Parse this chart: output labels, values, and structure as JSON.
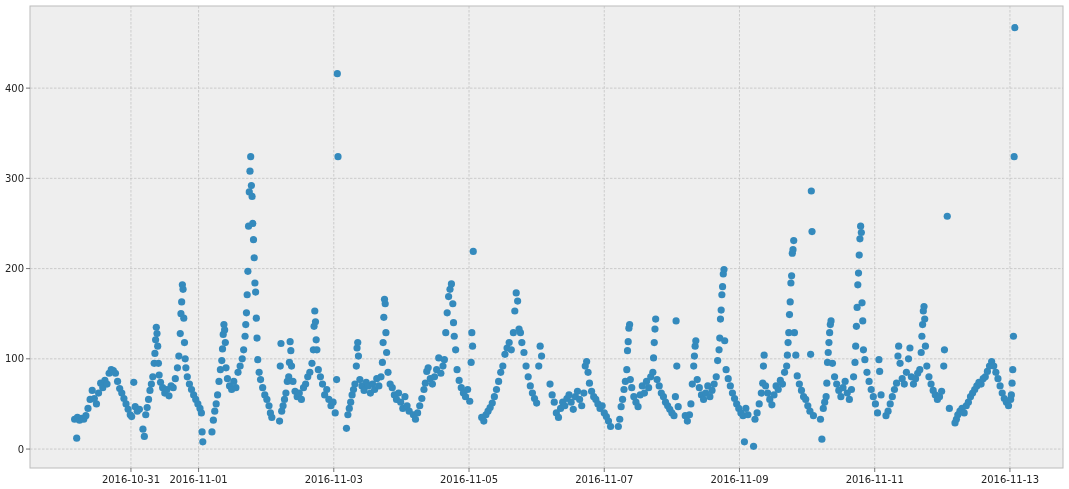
{
  "chart_data": {
    "type": "scatter",
    "color": "#348abd",
    "marker": "circle",
    "grid": true,
    "xlim": [
      "2016-10-29T12:10",
      "2016-11-13T18:50"
    ],
    "xticks": [
      "2016-10-31",
      "2016-11-01",
      "2016-11-03",
      "2016-11-05",
      "2016-11-07",
      "2016-11-09",
      "2016-11-11",
      "2016-11-13"
    ],
    "ylim": [
      -21,
      491
    ],
    "yticks": [
      0,
      100,
      200,
      300,
      400
    ],
    "x": [
      "2016-10-30T04:00",
      "2016-10-30T04:45",
      "2016-10-30T05:00",
      "2016-10-30T05:45",
      "2016-10-30T06:30",
      "2016-10-30T07:15",
      "2016-10-30T08:00",
      "2016-10-30T08:45",
      "2016-10-30T09:30",
      "2016-10-30T10:15",
      "2016-10-30T11:00",
      "2016-10-30T11:45",
      "2016-10-30T12:30",
      "2016-10-30T13:15",
      "2016-10-30T14:00",
      "2016-10-30T14:45",
      "2016-10-30T15:30",
      "2016-10-30T16:15",
      "2016-10-30T17:00",
      "2016-10-30T17:45",
      "2016-10-30T18:30",
      "2016-10-30T19:15",
      "2016-10-30T20:00",
      "2016-10-30T20:45",
      "2016-10-30T21:30",
      "2016-10-30T22:15",
      "2016-10-30T23:00",
      "2016-10-30T23:45",
      "2016-10-31T00:15",
      "2016-10-31T01:00",
      "2016-10-31T01:30",
      "2016-10-31T02:15",
      "2016-10-31T03:00",
      "2016-10-31T04:15",
      "2016-10-31T04:45",
      "2016-10-31T05:15",
      "2016-10-31T05:45",
      "2016-10-31T06:15",
      "2016-10-31T06:45",
      "2016-10-31T07:15",
      "2016-10-31T07:45",
      "2016-10-31T08:15",
      "2016-10-31T08:30",
      "2016-10-31T08:45",
      "2016-10-31T09:00",
      "2016-10-31T09:15",
      "2016-10-31T09:30",
      "2016-10-31T09:45",
      "2016-10-31T10:00",
      "2016-10-31T10:30",
      "2016-10-31T11:15",
      "2016-10-31T12:00",
      "2016-10-31T12:45",
      "2016-10-31T13:30",
      "2016-10-31T14:15",
      "2016-10-31T15:00",
      "2016-10-31T15:45",
      "2016-10-31T16:30",
      "2016-10-31T17:00",
      "2016-10-31T17:30",
      "2016-10-31T17:45",
      "2016-10-31T18:00",
      "2016-10-31T18:15",
      "2016-10-31T18:30",
      "2016-10-31T18:45",
      "2016-10-31T19:00",
      "2016-10-31T19:15",
      "2016-10-31T19:30",
      "2016-10-31T20:00",
      "2016-10-31T20:45",
      "2016-10-31T21:30",
      "2016-10-31T22:15",
      "2016-10-31T23:00",
      "2016-10-31T23:45",
      "2016-11-01T00:30",
      "2016-11-01T01:00",
      "2016-11-01T01:15",
      "2016-11-01T01:30",
      "2016-11-01T04:45",
      "2016-11-01T05:15",
      "2016-11-01T05:45",
      "2016-11-01T06:15",
      "2016-11-01T06:45",
      "2016-11-01T07:15",
      "2016-11-01T07:45",
      "2016-11-01T08:15",
      "2016-11-01T08:30",
      "2016-11-01T08:45",
      "2016-11-01T09:00",
      "2016-11-01T09:15",
      "2016-11-01T09:30",
      "2016-11-01T09:45",
      "2016-11-01T10:15",
      "2016-11-01T11:00",
      "2016-11-01T11:45",
      "2016-11-01T12:30",
      "2016-11-01T13:15",
      "2016-11-01T14:00",
      "2016-11-01T14:45",
      "2016-11-01T15:30",
      "2016-11-01T16:00",
      "2016-11-01T16:30",
      "2016-11-01T16:45",
      "2016-11-01T17:00",
      "2016-11-01T17:15",
      "2016-11-01T17:30",
      "2016-11-01T17:45",
      "2016-11-01T18:00",
      "2016-11-01T18:15",
      "2016-11-01T18:30",
      "2016-11-01T18:45",
      "2016-11-01T19:00",
      "2016-11-01T19:15",
      "2016-11-01T19:30",
      "2016-11-01T19:45",
      "2016-11-01T20:00",
      "2016-11-01T20:15",
      "2016-11-01T20:30",
      "2016-11-01T20:45",
      "2016-11-01T21:00",
      "2016-11-01T21:30",
      "2016-11-01T22:00",
      "2016-11-01T22:45",
      "2016-11-01T23:30",
      "2016-11-02T00:15",
      "2016-11-02T01:00",
      "2016-11-02T01:30",
      "2016-11-02T02:00",
      "2016-11-02T04:45",
      "2016-11-02T05:00",
      "2016-11-02T05:15",
      "2016-11-02T05:30",
      "2016-11-02T06:00",
      "2016-11-02T06:30",
      "2016-11-02T07:00",
      "2016-11-02T07:30",
      "2016-11-02T08:00",
      "2016-11-02T08:15",
      "2016-11-02T08:30",
      "2016-11-02T08:45",
      "2016-11-02T09:00",
      "2016-11-02T09:30",
      "2016-11-02T10:15",
      "2016-11-02T11:00",
      "2016-11-02T11:45",
      "2016-11-02T12:30",
      "2016-11-02T13:15",
      "2016-11-02T14:00",
      "2016-11-02T14:45",
      "2016-11-02T15:30",
      "2016-11-02T16:15",
      "2016-11-02T16:45",
      "2016-11-02T17:00",
      "2016-11-02T17:15",
      "2016-11-02T17:30",
      "2016-11-02T17:45",
      "2016-11-02T18:00",
      "2016-11-02T18:30",
      "2016-11-02T19:15",
      "2016-11-02T20:00",
      "2016-11-02T20:45",
      "2016-11-02T21:30",
      "2016-11-02T22:15",
      "2016-11-02T23:00",
      "2016-11-02T23:45",
      "2016-11-03T00:30",
      "2016-11-03T01:00",
      "2016-11-03T01:15",
      "2016-11-03T01:30",
      "2016-11-03T04:30",
      "2016-11-03T05:00",
      "2016-11-03T05:30",
      "2016-11-03T06:00",
      "2016-11-03T06:30",
      "2016-11-03T07:00",
      "2016-11-03T07:30",
      "2016-11-03T08:00",
      "2016-11-03T08:15",
      "2016-11-03T08:30",
      "2016-11-03T08:45",
      "2016-11-03T09:15",
      "2016-11-03T10:00",
      "2016-11-03T10:45",
      "2016-11-03T11:30",
      "2016-11-03T12:15",
      "2016-11-03T13:00",
      "2016-11-03T13:45",
      "2016-11-03T14:30",
      "2016-11-03T15:15",
      "2016-11-03T16:00",
      "2016-11-03T16:45",
      "2016-11-03T17:15",
      "2016-11-03T17:30",
      "2016-11-03T17:45",
      "2016-11-03T18:00",
      "2016-11-03T18:15",
      "2016-11-03T18:30",
      "2016-11-03T18:45",
      "2016-11-03T19:15",
      "2016-11-03T20:00",
      "2016-11-03T20:45",
      "2016-11-03T21:30",
      "2016-11-03T22:15",
      "2016-11-03T23:00",
      "2016-11-03T23:45",
      "2016-11-04T00:30",
      "2016-11-04T01:15",
      "2016-11-04T02:00",
      "2016-11-04T02:45",
      "2016-11-04T04:15",
      "2016-11-04T05:00",
      "2016-11-04T05:45",
      "2016-11-04T06:30",
      "2016-11-04T07:15",
      "2016-11-04T08:00",
      "2016-11-04T08:30",
      "2016-11-04T09:00",
      "2016-11-04T09:30",
      "2016-11-04T10:15",
      "2016-11-04T11:00",
      "2016-11-04T11:45",
      "2016-11-04T12:30",
      "2016-11-04T13:15",
      "2016-11-04T14:00",
      "2016-11-04T14:45",
      "2016-11-04T15:15",
      "2016-11-04T15:45",
      "2016-11-04T16:15",
      "2016-11-04T16:45",
      "2016-11-04T17:15",
      "2016-11-04T17:45",
      "2016-11-04T18:15",
      "2016-11-04T18:30",
      "2016-11-04T18:45",
      "2016-11-04T19:15",
      "2016-11-04T19:45",
      "2016-11-04T20:30",
      "2016-11-04T21:15",
      "2016-11-04T22:00",
      "2016-11-04T22:45",
      "2016-11-04T23:30",
      "2016-11-05T00:15",
      "2016-11-05T00:45",
      "2016-11-05T01:00",
      "2016-11-05T01:15",
      "2016-11-05T01:30",
      "2016-11-05T04:30",
      "2016-11-05T05:15",
      "2016-11-05T06:00",
      "2016-11-05T06:45",
      "2016-11-05T07:30",
      "2016-11-05T08:15",
      "2016-11-05T09:00",
      "2016-11-05T09:45",
      "2016-11-05T10:30",
      "2016-11-05T11:15",
      "2016-11-05T12:00",
      "2016-11-05T12:45",
      "2016-11-05T13:30",
      "2016-11-05T14:15",
      "2016-11-05T15:00",
      "2016-11-05T15:45",
      "2016-11-05T16:15",
      "2016-11-05T16:45",
      "2016-11-05T17:15",
      "2016-11-05T17:45",
      "2016-11-05T18:15",
      "2016-11-05T18:45",
      "2016-11-05T19:30",
      "2016-11-05T20:15",
      "2016-11-05T21:00",
      "2016-11-05T21:45",
      "2016-11-05T22:30",
      "2016-11-05T23:15",
      "2016-11-06T00:00",
      "2016-11-06T00:45",
      "2016-11-06T01:15",
      "2016-11-06T01:45",
      "2016-11-06T04:45",
      "2016-11-06T05:30",
      "2016-11-06T06:15",
      "2016-11-06T07:00",
      "2016-11-06T07:45",
      "2016-11-06T08:30",
      "2016-11-06T09:15",
      "2016-11-06T10:00",
      "2016-11-06T10:45",
      "2016-11-06T11:30",
      "2016-11-06T12:15",
      "2016-11-06T13:00",
      "2016-11-06T13:45",
      "2016-11-06T14:30",
      "2016-11-06T15:15",
      "2016-11-06T16:00",
      "2016-11-06T16:45",
      "2016-11-06T17:15",
      "2016-11-06T17:45",
      "2016-11-06T18:15",
      "2016-11-06T18:45",
      "2016-11-06T19:30",
      "2016-11-06T20:15",
      "2016-11-06T21:00",
      "2016-11-06T21:45",
      "2016-11-06T22:30",
      "2016-11-06T23:15",
      "2016-11-07T00:00",
      "2016-11-07T00:45",
      "2016-11-07T01:30",
      "2016-11-07T02:15",
      "2016-11-07T05:00",
      "2016-11-07T05:30",
      "2016-11-07T06:00",
      "2016-11-07T06:30",
      "2016-11-07T07:00",
      "2016-11-07T07:30",
      "2016-11-07T08:00",
      "2016-11-07T08:15",
      "2016-11-07T08:30",
      "2016-11-07T08:45",
      "2016-11-07T09:00",
      "2016-11-07T09:15",
      "2016-11-07T09:45",
      "2016-11-07T10:30",
      "2016-11-07T11:15",
      "2016-11-07T12:00",
      "2016-11-07T12:45",
      "2016-11-07T13:30",
      "2016-11-07T14:15",
      "2016-11-07T15:00",
      "2016-11-07T15:45",
      "2016-11-07T16:30",
      "2016-11-07T17:15",
      "2016-11-07T17:30",
      "2016-11-07T17:45",
      "2016-11-07T18:00",
      "2016-11-07T18:15",
      "2016-11-07T18:45",
      "2016-11-07T19:30",
      "2016-11-07T20:15",
      "2016-11-07T21:00",
      "2016-11-07T21:45",
      "2016-11-07T22:30",
      "2016-11-07T23:15",
      "2016-11-08T00:00",
      "2016-11-08T00:45",
      "2016-11-08T01:15",
      "2016-11-08T01:30",
      "2016-11-08T01:45",
      "2016-11-08T02:15",
      "2016-11-08T04:45",
      "2016-11-08T05:30",
      "2016-11-08T06:15",
      "2016-11-08T06:45",
      "2016-11-08T07:15",
      "2016-11-08T07:45",
      "2016-11-08T08:00",
      "2016-11-08T08:15",
      "2016-11-08T08:30",
      "2016-11-08T09:00",
      "2016-11-08T09:45",
      "2016-11-08T10:30",
      "2016-11-08T11:15",
      "2016-11-08T12:00",
      "2016-11-08T12:45",
      "2016-11-08T13:30",
      "2016-11-08T14:15",
      "2016-11-08T15:00",
      "2016-11-08T15:45",
      "2016-11-08T16:15",
      "2016-11-08T16:45",
      "2016-11-08T17:00",
      "2016-11-08T17:15",
      "2016-11-08T17:30",
      "2016-11-08T17:45",
      "2016-11-08T18:00",
      "2016-11-08T18:15",
      "2016-11-08T18:30",
      "2016-11-08T18:45",
      "2016-11-08T19:15",
      "2016-11-08T20:00",
      "2016-11-08T20:45",
      "2016-11-08T21:30",
      "2016-11-08T22:15",
      "2016-11-08T23:00",
      "2016-11-08T23:45",
      "2016-11-09T00:30",
      "2016-11-09T01:15",
      "2016-11-09T01:45",
      "2016-11-09T02:15",
      "2016-11-09T03:00",
      "2016-11-09T05:00",
      "2016-11-09T05:30",
      "2016-11-09T06:15",
      "2016-11-09T07:00",
      "2016-11-09T07:45",
      "2016-11-09T08:15",
      "2016-11-09T08:30",
      "2016-11-09T08:45",
      "2016-11-09T09:15",
      "2016-11-09T10:00",
      "2016-11-09T10:45",
      "2016-11-09T11:30",
      "2016-11-09T12:15",
      "2016-11-09T13:00",
      "2016-11-09T13:45",
      "2016-11-09T14:30",
      "2016-11-09T15:15",
      "2016-11-09T16:00",
      "2016-11-09T16:45",
      "2016-11-09T17:00",
      "2016-11-09T17:15",
      "2016-11-09T17:30",
      "2016-11-09T17:45",
      "2016-11-09T18:00",
      "2016-11-09T18:15",
      "2016-11-09T18:30",
      "2016-11-09T18:45",
      "2016-11-09T19:00",
      "2016-11-09T19:15",
      "2016-11-09T19:30",
      "2016-11-09T20:00",
      "2016-11-09T20:30",
      "2016-11-09T21:15",
      "2016-11-09T22:00",
      "2016-11-09T22:45",
      "2016-11-09T23:30",
      "2016-11-10T00:15",
      "2016-11-10T01:00",
      "2016-11-10T01:15",
      "2016-11-10T01:30",
      "2016-11-10T01:45",
      "2016-11-10T02:15",
      "2016-11-10T04:45",
      "2016-11-10T05:15",
      "2016-11-10T05:45",
      "2016-11-10T06:15",
      "2016-11-10T06:45",
      "2016-11-10T07:00",
      "2016-11-10T07:15",
      "2016-11-10T07:30",
      "2016-11-10T07:45",
      "2016-11-10T08:00",
      "2016-11-10T08:15",
      "2016-11-10T08:30",
      "2016-11-10T09:00",
      "2016-11-10T09:45",
      "2016-11-10T10:30",
      "2016-11-10T11:15",
      "2016-11-10T12:00",
      "2016-11-10T12:45",
      "2016-11-10T13:30",
      "2016-11-10T14:15",
      "2016-11-10T15:00",
      "2016-11-10T15:45",
      "2016-11-10T16:30",
      "2016-11-10T17:00",
      "2016-11-10T17:15",
      "2016-11-10T17:30",
      "2016-11-10T17:45",
      "2016-11-10T18:00",
      "2016-11-10T18:15",
      "2016-11-10T18:30",
      "2016-11-10T18:45",
      "2016-11-10T19:00",
      "2016-11-10T19:15",
      "2016-11-10T19:30",
      "2016-11-10T19:45",
      "2016-11-10T20:00",
      "2016-11-10T20:30",
      "2016-11-10T21:15",
      "2016-11-10T22:00",
      "2016-11-10T22:45",
      "2016-11-10T23:30",
      "2016-11-11T00:15",
      "2016-11-11T01:00",
      "2016-11-11T01:30",
      "2016-11-11T01:45",
      "2016-11-11T02:15",
      "2016-11-11T04:00",
      "2016-11-11T04:45",
      "2016-11-11T05:30",
      "2016-11-11T06:15",
      "2016-11-11T07:00",
      "2016-11-11T07:45",
      "2016-11-11T08:15",
      "2016-11-11T08:30",
      "2016-11-11T09:00",
      "2016-11-11T09:45",
      "2016-11-11T10:30",
      "2016-11-11T11:15",
      "2016-11-11T12:00",
      "2016-11-11T12:30",
      "2016-11-11T13:00",
      "2016-11-11T13:45",
      "2016-11-11T14:30",
      "2016-11-11T15:15",
      "2016-11-11T16:00",
      "2016-11-11T16:30",
      "2016-11-11T16:45",
      "2016-11-11T17:00",
      "2016-11-11T17:15",
      "2016-11-11T17:30",
      "2016-11-11T17:45",
      "2016-11-11T18:00",
      "2016-11-11T18:30",
      "2016-11-11T19:15",
      "2016-11-11T20:00",
      "2016-11-11T20:45",
      "2016-11-11T21:30",
      "2016-11-11T22:15",
      "2016-11-11T23:00",
      "2016-11-11T23:45",
      "2016-11-12T00:30",
      "2016-11-12T00:45",
      "2016-11-12T01:45",
      "2016-11-12T02:30",
      "2016-11-12T04:30",
      "2016-11-12T05:00",
      "2016-11-12T05:30",
      "2016-11-12T06:15",
      "2016-11-12T07:00",
      "2016-11-12T07:45",
      "2016-11-12T08:30",
      "2016-11-12T09:15",
      "2016-11-12T10:00",
      "2016-11-12T10:45",
      "2016-11-12T11:30",
      "2016-11-12T12:15",
      "2016-11-12T13:00",
      "2016-11-12T13:45",
      "2016-11-12T14:30",
      "2016-11-12T15:15",
      "2016-11-12T16:00",
      "2016-11-12T16:45",
      "2016-11-12T17:30",
      "2016-11-12T18:15",
      "2016-11-12T19:00",
      "2016-11-12T19:45",
      "2016-11-12T20:30",
      "2016-11-12T21:15",
      "2016-11-12T22:00",
      "2016-11-12T22:45",
      "2016-11-12T23:30",
      "2016-11-13T00:15",
      "2016-11-13T00:30",
      "2016-11-13T00:45",
      "2016-11-13T01:00",
      "2016-11-13T01:15",
      "2016-11-13T01:30",
      "2016-11-13T01:45"
    ],
    "values": [
      33,
      12,
      35,
      32,
      34,
      33,
      37,
      45,
      55,
      65,
      56,
      50,
      62,
      73,
      68,
      76,
      72,
      84,
      88,
      87,
      84,
      75,
      67,
      62,
      56,
      50,
      44,
      38,
      36,
      74,
      47,
      42,
      44,
      22,
      14,
      38,
      46,
      55,
      65,
      72,
      80,
      95,
      106,
      121,
      135,
      128,
      114,
      95,
      82,
      74,
      68,
      62,
      66,
      59,
      70,
      68,
      78,
      90,
      103,
      128,
      150,
      163,
      182,
      177,
      145,
      118,
      100,
      90,
      80,
      72,
      66,
      60,
      55,
      50,
      45,
      40,
      19,
      8,
      19,
      32,
      42,
      50,
      60,
      75,
      88,
      98,
      111,
      127,
      138,
      132,
      118,
      90,
      78,
      70,
      66,
      75,
      68,
      85,
      92,
      100,
      110,
      125,
      138,
      151,
      171,
      197,
      247,
      285,
      308,
      324,
      292,
      280,
      250,
      232,
      212,
      184,
      174,
      145,
      123,
      99,
      85,
      77,
      68,
      60,
      55,
      48,
      40,
      35,
      31,
      92,
      117,
      42,
      48,
      55,
      62,
      75,
      80,
      96,
      119,
      109,
      92,
      75,
      64,
      58,
      62,
      55,
      68,
      72,
      80,
      85,
      95,
      110,
      136,
      153,
      141,
      121,
      110,
      88,
      80,
      72,
      60,
      66,
      55,
      48,
      52,
      40,
      77,
      416,
      324,
      23,
      38,
      45,
      52,
      60,
      66,
      72,
      92,
      112,
      118,
      103,
      77,
      70,
      65,
      74,
      70,
      62,
      72,
      66,
      78,
      70,
      80,
      96,
      118,
      146,
      166,
      161,
      129,
      107,
      85,
      72,
      68,
      60,
      55,
      62,
      52,
      45,
      58,
      48,
      42,
      38,
      33,
      40,
      48,
      56,
      66,
      73,
      86,
      90,
      78,
      72,
      80,
      88,
      101,
      84,
      92,
      99,
      129,
      151,
      169,
      177,
      183,
      161,
      140,
      125,
      110,
      88,
      76,
      68,
      62,
      58,
      66,
      53,
      96,
      129,
      114,
      219,
      35,
      31,
      38,
      42,
      46,
      51,
      58,
      66,
      75,
      85,
      92,
      105,
      112,
      118,
      110,
      129,
      153,
      173,
      164,
      133,
      129,
      118,
      107,
      92,
      80,
      70,
      62,
      56,
      51,
      92,
      114,
      103,
      72,
      60,
      52,
      40,
      35,
      45,
      52,
      48,
      56,
      60,
      52,
      44,
      58,
      64,
      55,
      48,
      62,
      92,
      97,
      85,
      73,
      64,
      58,
      55,
      50,
      45,
      48,
      40,
      36,
      31,
      25,
      25,
      33,
      47,
      55,
      66,
      75,
      88,
      109,
      119,
      134,
      138,
      77,
      68,
      58,
      52,
      47,
      60,
      70,
      62,
      75,
      68,
      80,
      85,
      101,
      118,
      133,
      144,
      77,
      70,
      62,
      58,
      52,
      48,
      44,
      40,
      37,
      58,
      142,
      92,
      47,
      37,
      31,
      38,
      50,
      72,
      92,
      103,
      114,
      120,
      77,
      68,
      60,
      55,
      62,
      70,
      58,
      65,
      72,
      80,
      98,
      110,
      123,
      144,
      154,
      171,
      180,
      194,
      199,
      120,
      88,
      78,
      70,
      62,
      56,
      50,
      45,
      40,
      37,
      8,
      45,
      38,
      3,
      33,
      40,
      50,
      62,
      73,
      92,
      104,
      70,
      62,
      55,
      49,
      60,
      70,
      66,
      76,
      72,
      85,
      92,
      104,
      118,
      129,
      149,
      163,
      184,
      192,
      217,
      221,
      231,
      129,
      104,
      81,
      72,
      65,
      58,
      55,
      48,
      42,
      105,
      286,
      241,
      37,
      33,
      11,
      45,
      52,
      58,
      73,
      96,
      107,
      118,
      129,
      138,
      142,
      95,
      80,
      72,
      65,
      58,
      68,
      75,
      62,
      55,
      66,
      80,
      96,
      114,
      136,
      157,
      182,
      195,
      215,
      233,
      247,
      240,
      162,
      142,
      110,
      99,
      85,
      75,
      66,
      58,
      50,
      40,
      99,
      86,
      60,
      37,
      42,
      50,
      58,
      66,
      73,
      103,
      114,
      95,
      78,
      72,
      85,
      100,
      112,
      80,
      72,
      78,
      84,
      88,
      107,
      125,
      138,
      153,
      158,
      144,
      114,
      92,
      80,
      72,
      65,
      60,
      55,
      58,
      64,
      92,
      110,
      258,
      45,
      29,
      33,
      38,
      42,
      45,
      40,
      48,
      52,
      58,
      62,
      66,
      70,
      74,
      72,
      78,
      80,
      86,
      92,
      97,
      92,
      85,
      78,
      70,
      62,
      56,
      52,
      48,
      55,
      60,
      73,
      88,
      125,
      324,
      467
    ]
  }
}
